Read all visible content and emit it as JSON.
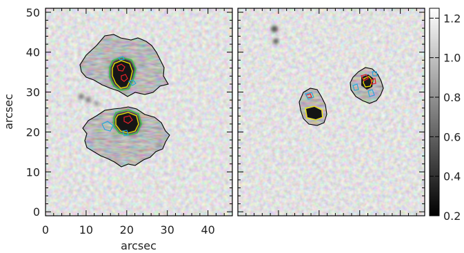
{
  "figure": {
    "left_panel": {
      "xlabel": "arcsec",
      "ylabel": "arcsec",
      "x_ticks": [
        "0",
        "10",
        "20",
        "30",
        "40"
      ],
      "y_ticks": [
        "0",
        "10",
        "20",
        "30",
        "40",
        "50"
      ],
      "x_range": [
        0,
        46
      ],
      "y_range": [
        -1,
        51
      ]
    },
    "right_panel": {
      "x_range": [
        0,
        46
      ],
      "y_range": [
        -1,
        51
      ]
    },
    "colorbar": {
      "ticks": [
        "0.2",
        "0.4",
        "0.6",
        "0.8",
        "1.0",
        "1.2"
      ],
      "range": [
        0.2,
        1.25
      ]
    },
    "contour_colors": {
      "outer": "#000000",
      "green": "#2ecc40",
      "yellow": "#f2e600",
      "red": "#e0202a",
      "blue": "#2aa8d8"
    }
  }
}
